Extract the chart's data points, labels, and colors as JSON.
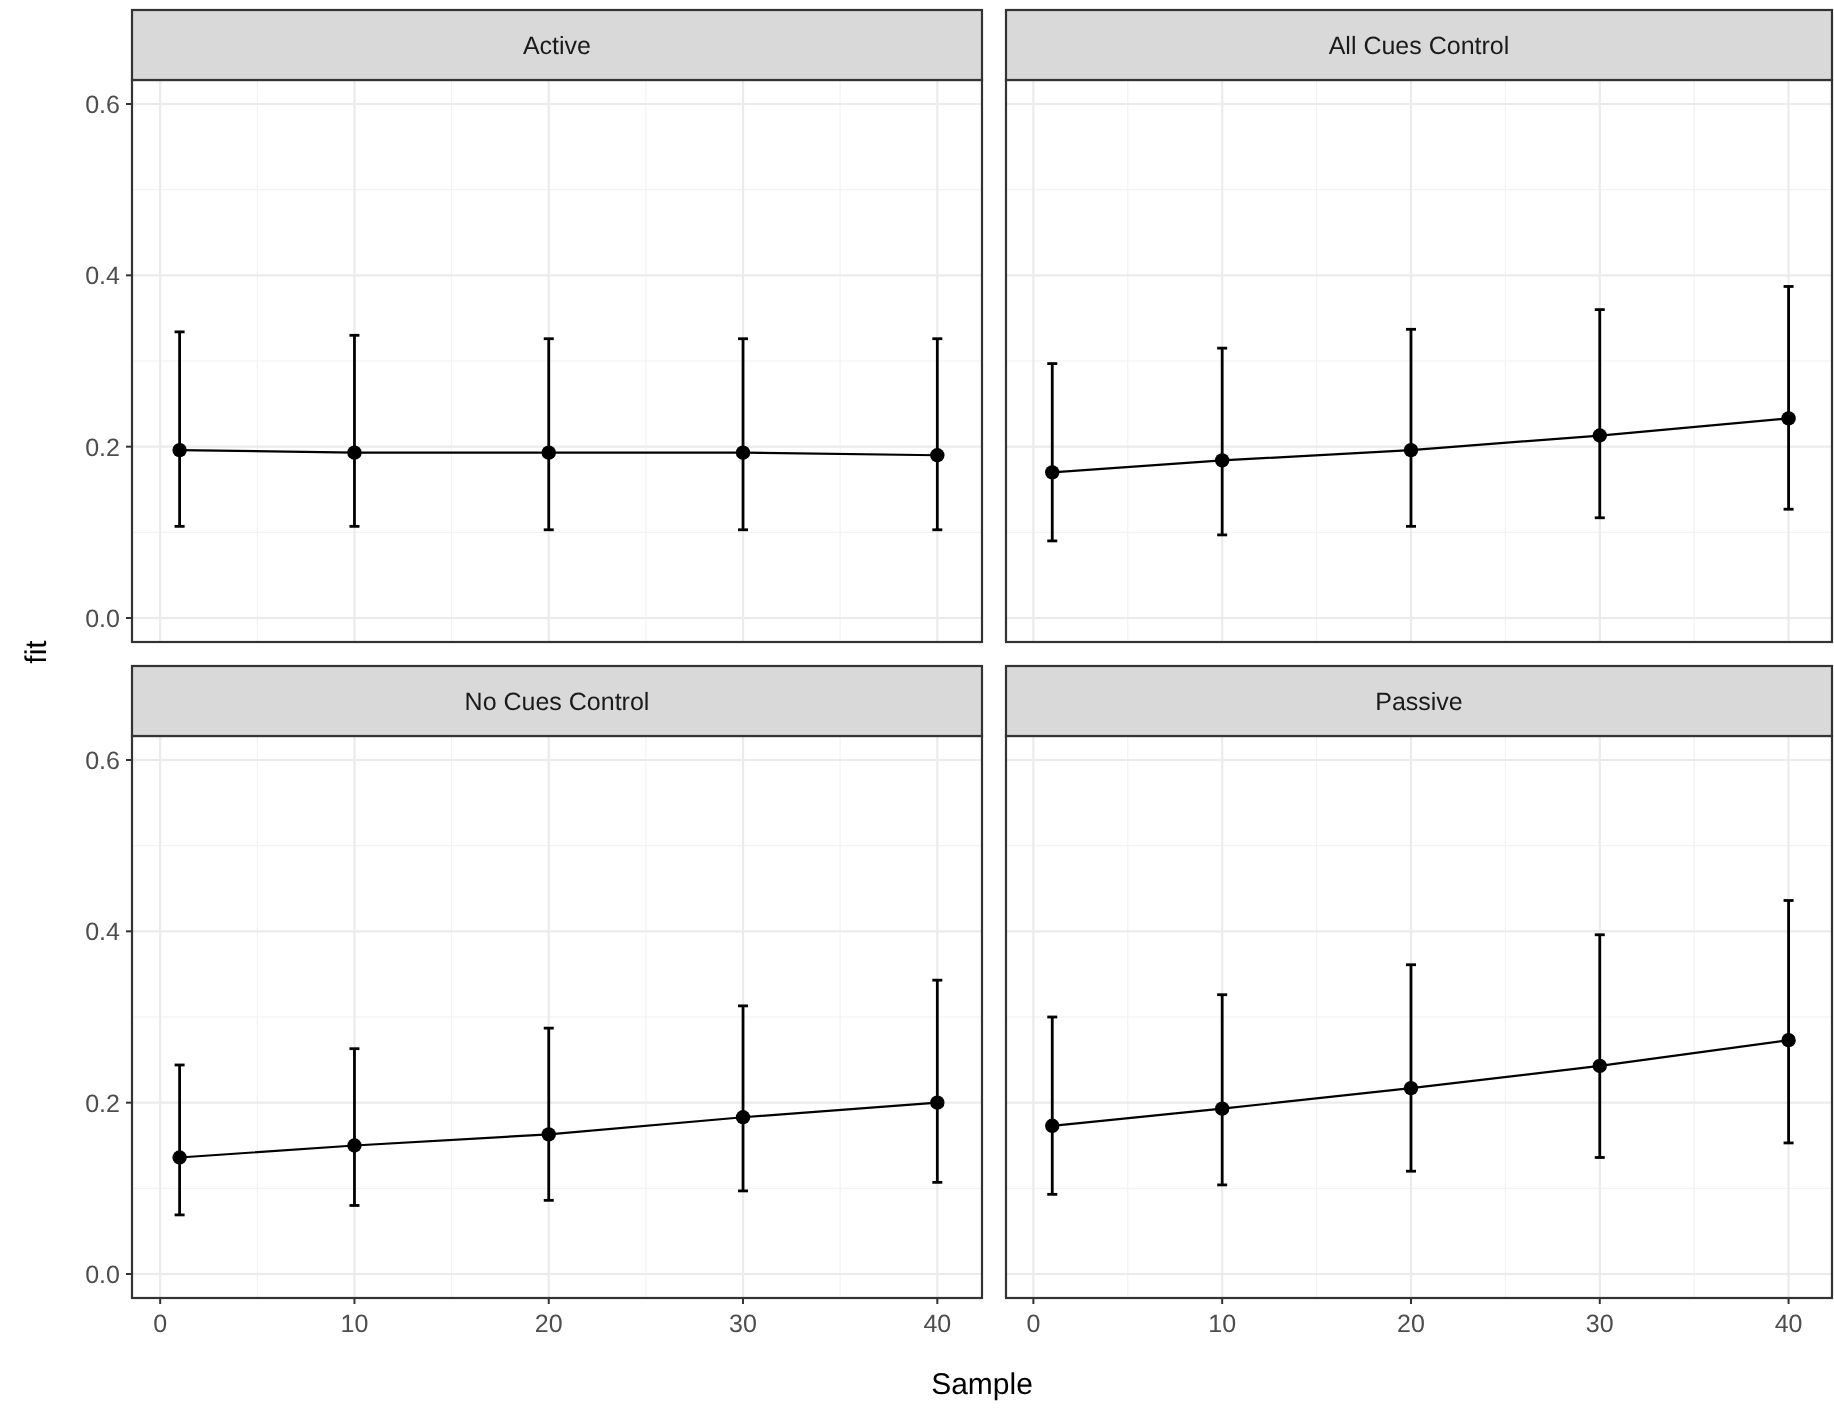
{
  "chart_data": [
    {
      "type": "line",
      "title": "Active",
      "x": [
        1,
        10,
        20,
        30,
        40
      ],
      "xlim": [
        -1.45,
        42.3
      ],
      "xticks": [
        0,
        10,
        20,
        30,
        40
      ],
      "ylim": [
        -0.028,
        0.628
      ],
      "yticks": [
        {
          "value": 0,
          "label": "0.0"
        },
        {
          "value": 0.2,
          "label": "0.2"
        },
        {
          "value": 0.4,
          "label": "0.4"
        },
        {
          "value": 0.6,
          "label": "0.6"
        }
      ],
      "tick_labels": "y",
      "grid": true,
      "marker": "circle",
      "line_style": "solid",
      "series": [
        {
          "color": "#000000",
          "values": [
            0.196,
            0.193,
            0.193,
            0.193,
            0.19
          ],
          "errors": [
            [
              0.107,
              0.334
            ],
            [
              0.107,
              0.33
            ],
            [
              0.103,
              0.326
            ],
            [
              0.103,
              0.326
            ],
            [
              0.103,
              0.326
            ]
          ]
        }
      ]
    },
    {
      "type": "line",
      "title": "All Cues Control",
      "x": [
        1,
        10,
        20,
        30,
        40
      ],
      "xlim": [
        -1.45,
        42.3
      ],
      "xticks": [
        0,
        10,
        20,
        30,
        40
      ],
      "ylim": [
        -0.028,
        0.628
      ],
      "yticks": [
        0,
        0.2,
        0.4,
        0.6
      ],
      "tick_labels": false,
      "grid": true,
      "marker": "circle",
      "line_style": "solid",
      "series": [
        {
          "color": "#000000",
          "values": [
            0.17,
            0.184,
            0.196,
            0.213,
            0.233
          ],
          "errors": [
            [
              0.09,
              0.297
            ],
            [
              0.097,
              0.315
            ],
            [
              0.107,
              0.337
            ],
            [
              0.117,
              0.36
            ],
            [
              0.127,
              0.387
            ]
          ]
        }
      ]
    },
    {
      "type": "line",
      "title": "No Cues Control",
      "xlabel": "Sample",
      "ylabel": "fit",
      "x": [
        1,
        10,
        20,
        30,
        40
      ],
      "xlim": [
        -1.45,
        42.3
      ],
      "xticks": [
        0,
        10,
        20,
        30,
        40
      ],
      "ylim": [
        -0.028,
        0.628
      ],
      "yticks": [
        {
          "value": 0,
          "label": "0.0"
        },
        {
          "value": 0.2,
          "label": "0.2"
        },
        {
          "value": 0.4,
          "label": "0.4"
        },
        {
          "value": 0.6,
          "label": "0.6"
        }
      ],
      "grid": true,
      "marker": "circle",
      "line_style": "solid",
      "series": [
        {
          "color": "#000000",
          "values": [
            0.136,
            0.15,
            0.163,
            0.183,
            0.2
          ],
          "errors": [
            [
              0.069,
              0.244
            ],
            [
              0.08,
              0.263
            ],
            [
              0.086,
              0.287
            ],
            [
              0.097,
              0.313
            ],
            [
              0.107,
              0.343
            ]
          ]
        }
      ]
    },
    {
      "type": "line",
      "title": "Passive",
      "x": [
        1,
        10,
        20,
        30,
        40
      ],
      "xlim": [
        -1.45,
        42.3
      ],
      "xticks": [
        0,
        10,
        20,
        30,
        40
      ],
      "ylim": [
        -0.028,
        0.628
      ],
      "yticks": [
        0,
        0.2,
        0.4,
        0.6
      ],
      "tick_labels": "x",
      "grid": true,
      "marker": "circle",
      "line_style": "solid",
      "series": [
        {
          "color": "#000000",
          "values": [
            0.173,
            0.193,
            0.217,
            0.243,
            0.273
          ],
          "errors": [
            [
              0.093,
              0.3
            ],
            [
              0.104,
              0.326
            ],
            [
              0.12,
              0.361
            ],
            [
              0.136,
              0.396
            ],
            [
              0.153,
              0.436
            ]
          ]
        }
      ]
    }
  ]
}
